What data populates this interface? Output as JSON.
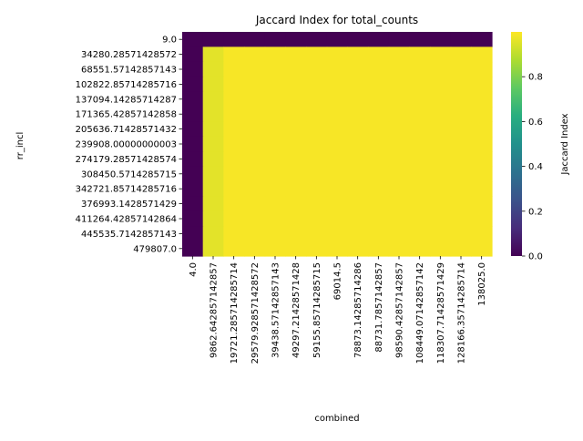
{
  "chart_data": {
    "type": "heatmap",
    "title": "Jaccard Index for total_counts",
    "xlabel": "combined",
    "ylabel": "rr_incl",
    "x_ticks": [
      "4.0",
      "9862.642857142857",
      "19721.285714285714",
      "29579.928571428572",
      "39438.57142857143",
      "49297.21428571428",
      "59155.85714285715",
      "69014.5",
      "78873.14285714286",
      "88731.7857142857",
      "98590.42857142857",
      "108449.07142857142",
      "118307.71428571429",
      "128166.35714285714",
      "138025.0"
    ],
    "y_ticks": [
      "9.0",
      "34280.28571428572",
      "68551.57142857143",
      "102822.85714285716",
      "137094.14285714287",
      "171365.42857142858",
      "205636.71428571432",
      "239908.00000000003",
      "274179.28571428574",
      "308450.5714285715",
      "342721.85714285716",
      "376993.1428571429",
      "411264.42857142864",
      "445535.7142857143",
      "479807.0"
    ],
    "values_description_grid": {
      "rows": 15,
      "cols": 15
    },
    "values": [
      [
        0.0,
        0.0,
        0.0,
        0.0,
        0.0,
        0.0,
        0.0,
        0.0,
        0.0,
        0.0,
        0.0,
        0.0,
        0.0,
        0.0,
        0.0
      ],
      [
        0.0,
        0.96,
        0.99,
        0.99,
        0.99,
        0.99,
        0.99,
        0.99,
        0.99,
        0.99,
        0.99,
        0.99,
        0.99,
        0.99,
        0.99
      ],
      [
        0.0,
        0.96,
        0.99,
        0.99,
        0.99,
        0.99,
        0.99,
        0.99,
        0.99,
        0.99,
        0.99,
        0.99,
        0.99,
        0.99,
        0.99
      ],
      [
        0.0,
        0.96,
        0.99,
        0.99,
        0.99,
        0.99,
        0.99,
        0.99,
        0.99,
        0.99,
        0.99,
        0.99,
        0.99,
        0.99,
        0.99
      ],
      [
        0.0,
        0.96,
        0.99,
        0.99,
        0.99,
        0.99,
        0.99,
        0.99,
        0.99,
        0.99,
        0.99,
        0.99,
        0.99,
        0.99,
        0.99
      ],
      [
        0.0,
        0.96,
        0.99,
        0.99,
        0.99,
        0.99,
        0.99,
        0.99,
        0.99,
        0.99,
        0.99,
        0.99,
        0.99,
        0.99,
        0.99
      ],
      [
        0.0,
        0.96,
        0.99,
        0.99,
        0.99,
        0.99,
        0.99,
        0.99,
        0.99,
        0.99,
        0.99,
        0.99,
        0.99,
        0.99,
        0.99
      ],
      [
        0.0,
        0.96,
        0.99,
        0.99,
        0.99,
        0.99,
        0.99,
        0.99,
        0.99,
        0.99,
        0.99,
        0.99,
        0.99,
        0.99,
        0.99
      ],
      [
        0.0,
        0.96,
        0.99,
        0.99,
        0.99,
        0.99,
        0.99,
        0.99,
        0.99,
        0.99,
        0.99,
        0.99,
        0.99,
        0.99,
        0.99
      ],
      [
        0.0,
        0.96,
        0.99,
        0.99,
        0.99,
        0.99,
        0.99,
        0.99,
        0.99,
        0.99,
        0.99,
        0.99,
        0.99,
        0.99,
        0.99
      ],
      [
        0.0,
        0.96,
        0.99,
        0.99,
        0.99,
        0.99,
        0.99,
        0.99,
        0.99,
        0.99,
        0.99,
        0.99,
        0.99,
        0.99,
        0.99
      ],
      [
        0.0,
        0.96,
        0.99,
        0.99,
        0.99,
        0.99,
        0.99,
        0.99,
        0.99,
        0.99,
        0.99,
        0.99,
        0.99,
        0.99,
        0.99
      ],
      [
        0.0,
        0.96,
        0.99,
        0.99,
        0.99,
        0.99,
        0.99,
        0.99,
        0.99,
        0.99,
        0.99,
        0.99,
        0.99,
        0.99,
        0.99
      ],
      [
        0.0,
        0.96,
        0.99,
        0.99,
        0.99,
        0.99,
        0.99,
        0.99,
        0.99,
        0.99,
        0.99,
        0.99,
        0.99,
        0.99,
        0.99
      ],
      [
        0.0,
        0.96,
        0.99,
        0.99,
        0.99,
        0.99,
        0.99,
        0.99,
        0.99,
        0.99,
        0.99,
        0.99,
        0.99,
        0.99,
        0.99
      ]
    ],
    "colormap": "viridis",
    "colorbar": {
      "label": "Jaccard Index",
      "range": [
        0.0,
        1.0
      ],
      "ticks": [
        "0.0",
        "0.2",
        "0.4",
        "0.6",
        "0.8"
      ]
    },
    "colors": {
      "low": "#440154",
      "high": "#fde725"
    }
  }
}
